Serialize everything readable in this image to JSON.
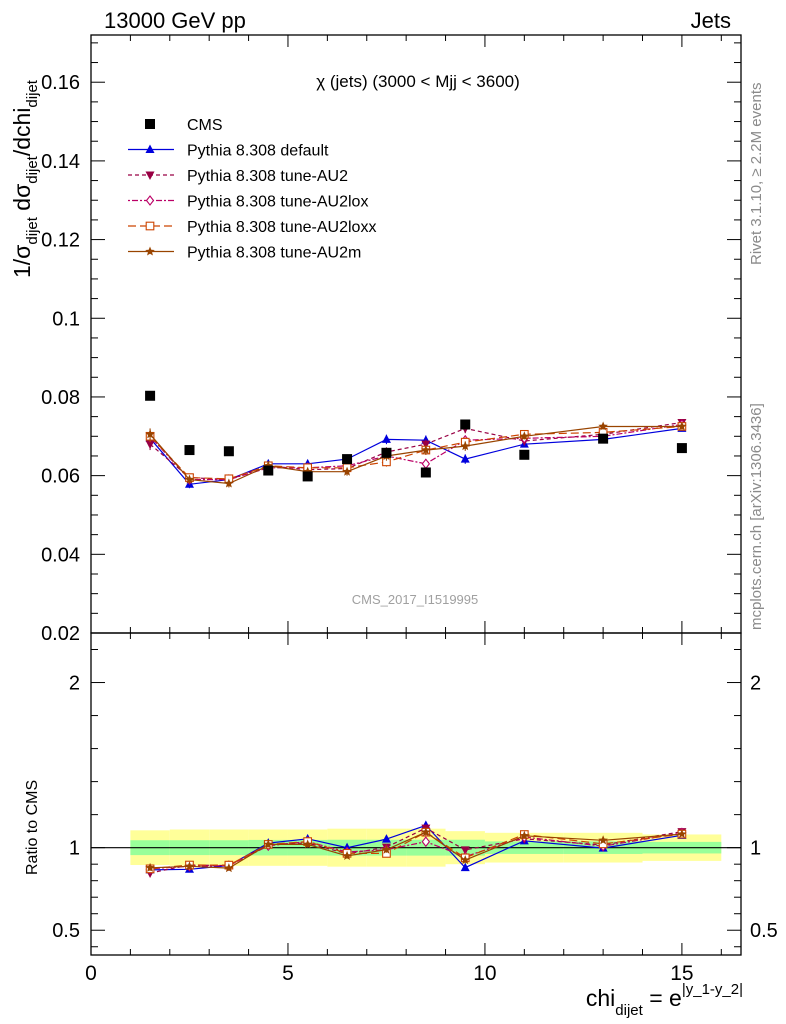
{
  "header": {
    "left": "13000 GeV pp",
    "right": "Jets"
  },
  "side_labels": {
    "rivet": "Rivet 3.1.10, ≥ 2.2M events",
    "mcplots": "mcplots.cern.ch [arXiv:1306.3436]"
  },
  "chart_data": {
    "type": "scatter",
    "title": "χ (jets) (3000 < Mjj < 3600)",
    "watermark": "CMS_2017_I1519995",
    "xlabel": "chi_dijet = e^|y_1-y_2|",
    "xlabel_parts": {
      "main": "chi",
      "sub": "dijet",
      "eq": " = e",
      "sup": "|y_1-y_2|"
    },
    "ylabel": "1/σ_dijet dσ_dijet/dchi_dijet",
    "ratio_ylabel": "Ratio to CMS",
    "xlim": [
      0,
      16.5
    ],
    "ylim": [
      0.02,
      0.172
    ],
    "ratio_ylim": [
      0.35,
      2.3
    ],
    "xticks": [
      0,
      5,
      10,
      15
    ],
    "yticks": [
      0.02,
      0.04,
      0.06,
      0.08,
      0.1,
      0.12,
      0.14,
      0.16
    ],
    "ytick_labels": [
      "0.02",
      "0.04",
      "0.06",
      "0.08",
      "0.1",
      "0.12",
      "0.14",
      "0.16"
    ],
    "ratio_yticks": [
      0.5,
      1,
      2
    ],
    "ratio_ytick_labels": [
      "0.5",
      "1",
      "2"
    ],
    "bin_edges": [
      1,
      2,
      3,
      4,
      5,
      6,
      7,
      8,
      9,
      10,
      12,
      14,
      16
    ],
    "x": [
      1.5,
      2.5,
      3.5,
      4.5,
      5.5,
      6.5,
      7.5,
      8.5,
      9.5,
      11,
      13,
      15
    ],
    "legend_position": "top-left",
    "cms": {
      "name": "CMS",
      "values": [
        0.0803,
        0.0665,
        0.0662,
        0.0613,
        0.0598,
        0.0642,
        0.0658,
        0.0608,
        0.073,
        0.0653,
        0.0694,
        0.067
      ]
    },
    "band_inner": [
      0.045,
      0.045,
      0.045,
      0.047,
      0.047,
      0.048,
      0.048,
      0.048,
      0.048,
      0.038,
      0.038,
      0.035
    ],
    "band_outer": [
      0.105,
      0.11,
      0.11,
      0.11,
      0.11,
      0.115,
      0.115,
      0.115,
      0.1,
      0.09,
      0.09,
      0.08
    ],
    "series": [
      {
        "name": "Pythia 8.308 default",
        "color": "#0000dd",
        "marker": "triangle-up",
        "dash": "",
        "values": [
          0.0695,
          0.0578,
          0.059,
          0.063,
          0.063,
          0.0642,
          0.0692,
          0.069,
          0.0642,
          0.068,
          0.0692,
          0.072
        ],
        "errors": [
          0.0015,
          0.001,
          0.001,
          0.001,
          0.001,
          0.001,
          0.0012,
          0.0012,
          0.0012,
          0.0008,
          0.0008,
          0.0008
        ]
      },
      {
        "name": "Pythia 8.308 tune-AU2",
        "color": "#990044",
        "marker": "triangle-down",
        "dash": "4,3",
        "values": [
          0.068,
          0.0595,
          0.059,
          0.0625,
          0.0615,
          0.0618,
          0.066,
          0.068,
          0.072,
          0.0688,
          0.0705,
          0.0735
        ],
        "errors": [
          0.0015,
          0.001,
          0.001,
          0.001,
          0.001,
          0.001,
          0.0012,
          0.0012,
          0.0012,
          0.0008,
          0.0008,
          0.0008
        ]
      },
      {
        "name": "Pythia 8.308 tune-AU2lox",
        "color": "#bb0066",
        "marker": "diamond-open",
        "dash": "2,2,6,2",
        "values": [
          0.07,
          0.059,
          0.059,
          0.062,
          0.062,
          0.0625,
          0.065,
          0.063,
          0.069,
          0.0695,
          0.07,
          0.073
        ],
        "errors": [
          0.0015,
          0.001,
          0.001,
          0.001,
          0.001,
          0.001,
          0.0012,
          0.0012,
          0.0012,
          0.0008,
          0.0008,
          0.0008
        ]
      },
      {
        "name": "Pythia 8.308 tune-AU2loxx",
        "color": "#cc4400",
        "marker": "square-open",
        "dash": "8,4",
        "values": [
          0.07,
          0.0595,
          0.0592,
          0.0625,
          0.062,
          0.062,
          0.0635,
          0.0665,
          0.0685,
          0.0705,
          0.071,
          0.0725
        ],
        "errors": [
          0.0015,
          0.001,
          0.001,
          0.001,
          0.001,
          0.001,
          0.0012,
          0.0012,
          0.0012,
          0.0008,
          0.0008,
          0.0008
        ]
      },
      {
        "name": "Pythia 8.308 tune-AU2m",
        "color": "#994400",
        "marker": "star",
        "dash": "",
        "values": [
          0.0705,
          0.059,
          0.058,
          0.0625,
          0.061,
          0.061,
          0.065,
          0.0665,
          0.0675,
          0.07,
          0.0725,
          0.0725
        ],
        "errors": [
          0.0015,
          0.001,
          0.001,
          0.001,
          0.001,
          0.001,
          0.0012,
          0.0012,
          0.0012,
          0.0008,
          0.0008,
          0.0008
        ]
      }
    ]
  }
}
